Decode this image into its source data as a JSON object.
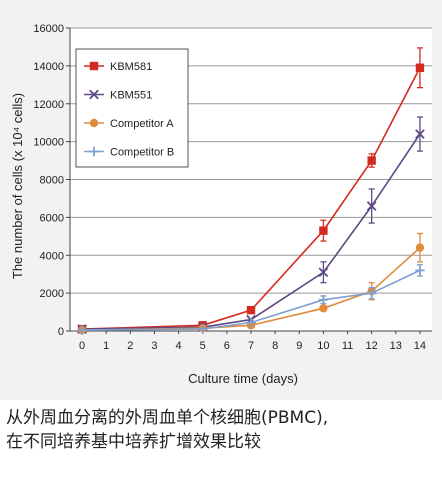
{
  "chart_data": {
    "type": "line",
    "x": [
      0,
      5,
      7,
      10,
      12,
      14
    ],
    "xticks": [
      0,
      1,
      2,
      3,
      4,
      5,
      6,
      7,
      8,
      9,
      10,
      11,
      12,
      13,
      14
    ],
    "xlim": [
      -0.5,
      14.5
    ],
    "ylim": [
      0,
      16000
    ],
    "yticks": [
      0,
      2000,
      4000,
      6000,
      8000,
      10000,
      12000,
      14000,
      16000
    ],
    "xlabel": "Culture time (days)",
    "ylabel": "The number of cells (x 10⁴ cells)",
    "grid": "horizontal",
    "legend_position": "top-left",
    "series": [
      {
        "name": "KBM581",
        "color": "#d42a22",
        "marker": "square",
        "values": [
          100,
          300,
          1100,
          5300,
          9000,
          13900
        ],
        "errors": [
          0,
          0,
          0,
          550,
          350,
          1050
        ]
      },
      {
        "name": "KBM551",
        "color": "#5e4a86",
        "marker": "x",
        "values": [
          100,
          200,
          600,
          3100,
          6600,
          10400
        ],
        "errors": [
          0,
          0,
          0,
          550,
          900,
          900
        ]
      },
      {
        "name": "Competitor A",
        "color": "#e08a3c",
        "marker": "circle",
        "values": [
          50,
          150,
          300,
          1200,
          2100,
          4400
        ],
        "errors": [
          0,
          0,
          0,
          0,
          450,
          750
        ]
      },
      {
        "name": "Competitor B",
        "color": "#7f9fd1",
        "marker": "plus",
        "values": [
          50,
          100,
          450,
          1650,
          2000,
          3200
        ],
        "errors": [
          0,
          0,
          0,
          200,
          300,
          300
        ]
      }
    ]
  },
  "caption": {
    "line1": "从外周血分离的外周血单个核细胞(PBMC),",
    "line2": "在不同培养基中培养扩增效果比较"
  }
}
